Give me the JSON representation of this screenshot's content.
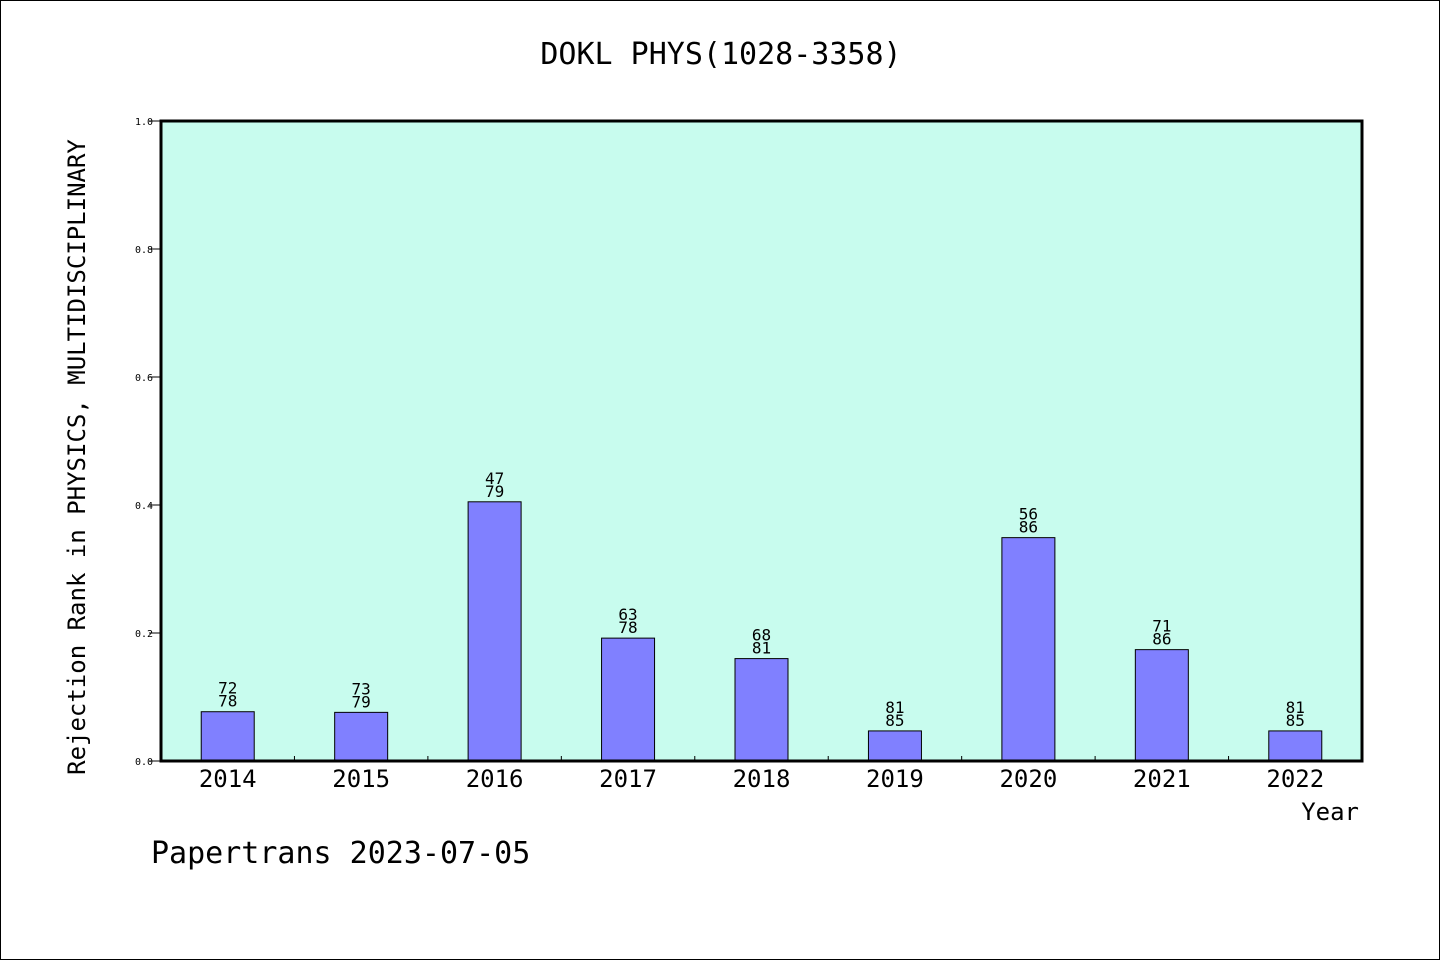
{
  "chart_data": {
    "type": "bar",
    "title": "DOKL PHYS(1028-3358)",
    "xlabel": "Year",
    "ylabel": "Rejection Rank in PHYSICS, MULTIDISCIPLINARY",
    "categories": [
      "2014",
      "2015",
      "2016",
      "2017",
      "2018",
      "2019",
      "2020",
      "2021",
      "2022"
    ],
    "values": [
      0.077,
      0.076,
      0.405,
      0.192,
      0.16,
      0.047,
      0.349,
      0.174,
      0.047
    ],
    "bar_labels_top": [
      "72",
      "73",
      "47",
      "63",
      "68",
      "81",
      "56",
      "71",
      "81"
    ],
    "bar_labels_bottom": [
      "78",
      "79",
      "79",
      "78",
      "81",
      "85",
      "86",
      "86",
      "85"
    ],
    "ylim": [
      0,
      1.0
    ],
    "yticks": [
      "0.0",
      "0.2",
      "0.4",
      "0.6",
      "0.8",
      "1.0"
    ],
    "grid": false,
    "colors": {
      "plot_background": "#c8fcee",
      "bar_fill": "#8080ff",
      "bar_stroke": "#000000"
    }
  },
  "footer": "Papertrans 2023-07-05"
}
